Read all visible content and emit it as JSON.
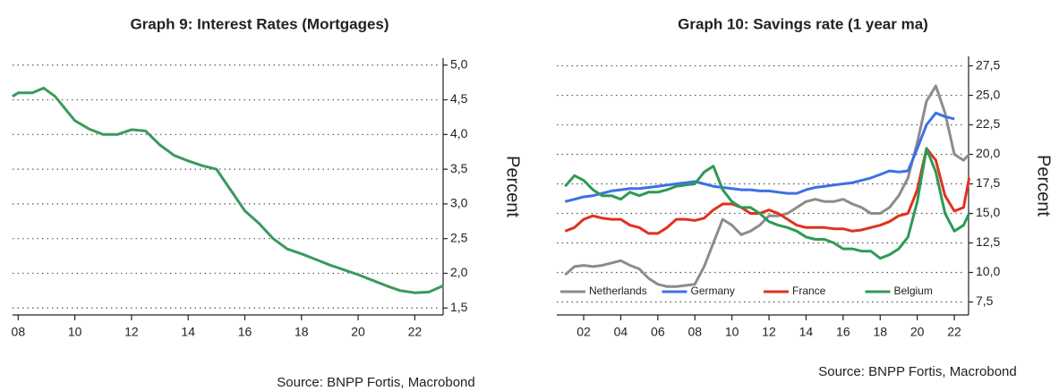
{
  "chart_data": [
    {
      "type": "line",
      "title": "Graph 9: Interest Rates (Mortgages)",
      "y_label": "Percent",
      "source": "Source: BNPP Fortis, Macrobond",
      "x": [
        2007.8,
        2008,
        2008.5,
        2008.9,
        2009.3,
        2009.7,
        2010,
        2010.5,
        2011,
        2011.5,
        2012,
        2012.5,
        2013,
        2013.5,
        2014,
        2014.5,
        2015,
        2015.5,
        2016,
        2016.5,
        2017,
        2017.5,
        2018,
        2018.5,
        2019,
        2019.5,
        2020,
        2020.5,
        2021,
        2021.5,
        2022,
        2022.5,
        2023
      ],
      "series": [
        {
          "name": null,
          "color": "#3a9a5c",
          "values": [
            4.55,
            4.6,
            4.6,
            4.67,
            4.55,
            4.35,
            4.2,
            4.08,
            4.0,
            4.0,
            4.07,
            4.05,
            3.85,
            3.7,
            3.62,
            3.55,
            3.5,
            3.2,
            2.9,
            2.72,
            2.5,
            2.35,
            2.28,
            2.2,
            2.12,
            2.05,
            1.98,
            1.9,
            1.82,
            1.75,
            1.72,
            1.73,
            1.82
          ]
        }
      ],
      "xlim": [
        2007.8,
        2023.0
      ],
      "xticks": [
        {
          "value": 2008,
          "label": "08"
        },
        {
          "value": 2010,
          "label": "10"
        },
        {
          "value": 2012,
          "label": "12"
        },
        {
          "value": 2014,
          "label": "14"
        },
        {
          "value": 2016,
          "label": "16"
        },
        {
          "value": 2018,
          "label": "18"
        },
        {
          "value": 2020,
          "label": "20"
        },
        {
          "value": 2022,
          "label": "22"
        }
      ],
      "ylim": [
        1.4,
        5.1
      ],
      "yticks": [
        {
          "value": 1.5,
          "label": "1,5"
        },
        {
          "value": 2.0,
          "label": "2,0"
        },
        {
          "value": 2.5,
          "label": "2,5"
        },
        {
          "value": 3.0,
          "label": "3,0"
        },
        {
          "value": 3.5,
          "label": "3,5"
        },
        {
          "value": 4.0,
          "label": "4,0"
        },
        {
          "value": 4.5,
          "label": "4,5"
        },
        {
          "value": 5.0,
          "label": "5,0"
        }
      ],
      "grid": true
    },
    {
      "type": "line",
      "title": "Graph 10: Savings rate (1 year ma)",
      "y_label": "Percent",
      "source": "Source: BNPP Fortis, Macrobond",
      "x": [
        2001,
        2001.5,
        2002,
        2002.5,
        2003,
        2003.5,
        2004,
        2004.5,
        2005,
        2005.5,
        2006,
        2006.5,
        2007,
        2007.5,
        2008,
        2008.5,
        2009,
        2009.5,
        2010,
        2010.5,
        2011,
        2011.5,
        2012,
        2012.5,
        2013,
        2013.5,
        2014,
        2014.5,
        2015,
        2015.5,
        2016,
        2016.5,
        2017,
        2017.5,
        2018,
        2018.5,
        2019,
        2019.5,
        2020,
        2020.5,
        2021,
        2021.5,
        2022,
        2022.5,
        2022.8
      ],
      "series": [
        {
          "name": "Netherlands",
          "color": "#8c8c8c",
          "values": [
            9.8,
            10.5,
            10.6,
            10.5,
            10.6,
            10.8,
            11.0,
            10.6,
            10.3,
            9.5,
            9.0,
            8.8,
            8.8,
            8.9,
            9.0,
            10.5,
            12.5,
            14.5,
            14.0,
            13.2,
            13.5,
            14.0,
            14.8,
            14.8,
            15.0,
            15.5,
            16.0,
            16.2,
            16.0,
            16.0,
            16.2,
            15.8,
            15.5,
            15.0,
            15.0,
            15.5,
            16.5,
            18.0,
            21.0,
            24.5,
            25.8,
            23.5,
            20.0,
            19.5,
            20.0
          ]
        },
        {
          "name": "Germany",
          "color": "#3f6fe8",
          "values": [
            16.0,
            16.2,
            16.4,
            16.5,
            16.7,
            16.9,
            17.0,
            17.1,
            17.1,
            17.2,
            17.3,
            17.4,
            17.5,
            17.6,
            17.7,
            17.5,
            17.3,
            17.2,
            17.1,
            17.0,
            17.0,
            16.9,
            16.9,
            16.8,
            16.7,
            16.7,
            17.0,
            17.2,
            17.3,
            17.4,
            17.5,
            17.6,
            17.8,
            18.0,
            18.3,
            18.6,
            18.5,
            18.6,
            20.5,
            22.5,
            23.5,
            23.2,
            23.0,
            null,
            null
          ]
        },
        {
          "name": "France",
          "color": "#e0321e",
          "values": [
            13.5,
            13.8,
            14.5,
            14.8,
            14.6,
            14.5,
            14.5,
            14.0,
            13.8,
            13.3,
            13.3,
            13.8,
            14.5,
            14.5,
            14.4,
            14.6,
            15.3,
            15.8,
            15.8,
            15.5,
            15.0,
            15.0,
            15.3,
            15.0,
            14.5,
            14.0,
            13.8,
            13.8,
            13.8,
            13.7,
            13.7,
            13.5,
            13.6,
            13.8,
            14.0,
            14.3,
            14.8,
            15.0,
            17.0,
            20.5,
            19.5,
            16.5,
            15.2,
            15.5,
            18.0
          ]
        },
        {
          "name": "Belgium",
          "color": "#2e9a55",
          "values": [
            17.3,
            18.2,
            17.8,
            17.0,
            16.5,
            16.5,
            16.2,
            16.8,
            16.5,
            16.8,
            16.8,
            17.0,
            17.3,
            17.4,
            17.5,
            18.5,
            19.0,
            17.0,
            16.0,
            15.5,
            15.5,
            15.0,
            14.3,
            14.0,
            13.8,
            13.5,
            13.0,
            12.8,
            12.8,
            12.5,
            12.0,
            12.0,
            11.8,
            11.8,
            11.2,
            11.5,
            12.0,
            13.0,
            16.0,
            20.5,
            18.5,
            15.0,
            13.5,
            14.0,
            15.0
          ]
        }
      ],
      "xlim": [
        2000.55,
        2022.77
      ],
      "xticks": [
        {
          "value": 2002,
          "label": "02"
        },
        {
          "value": 2004,
          "label": "04"
        },
        {
          "value": 2006,
          "label": "06"
        },
        {
          "value": 2008,
          "label": "08"
        },
        {
          "value": 2010,
          "label": "10"
        },
        {
          "value": 2012,
          "label": "12"
        },
        {
          "value": 2014,
          "label": "14"
        },
        {
          "value": 2016,
          "label": "16"
        },
        {
          "value": 2018,
          "label": "18"
        },
        {
          "value": 2020,
          "label": "20"
        },
        {
          "value": 2022,
          "label": "22"
        }
      ],
      "ylim": [
        6.4,
        28.3
      ],
      "yticks": [
        {
          "value": 7.5,
          "label": "7,5"
        },
        {
          "value": 10.0,
          "label": "10,0"
        },
        {
          "value": 12.5,
          "label": "12,5"
        },
        {
          "value": 15.0,
          "label": "15,0"
        },
        {
          "value": 17.5,
          "label": "17,5"
        },
        {
          "value": 20.0,
          "label": "20,0"
        },
        {
          "value": 22.5,
          "label": "22,5"
        },
        {
          "value": 25.0,
          "label": "25,0"
        },
        {
          "value": 27.5,
          "label": "27,5"
        }
      ],
      "grid": true,
      "legend": "bottom"
    }
  ]
}
